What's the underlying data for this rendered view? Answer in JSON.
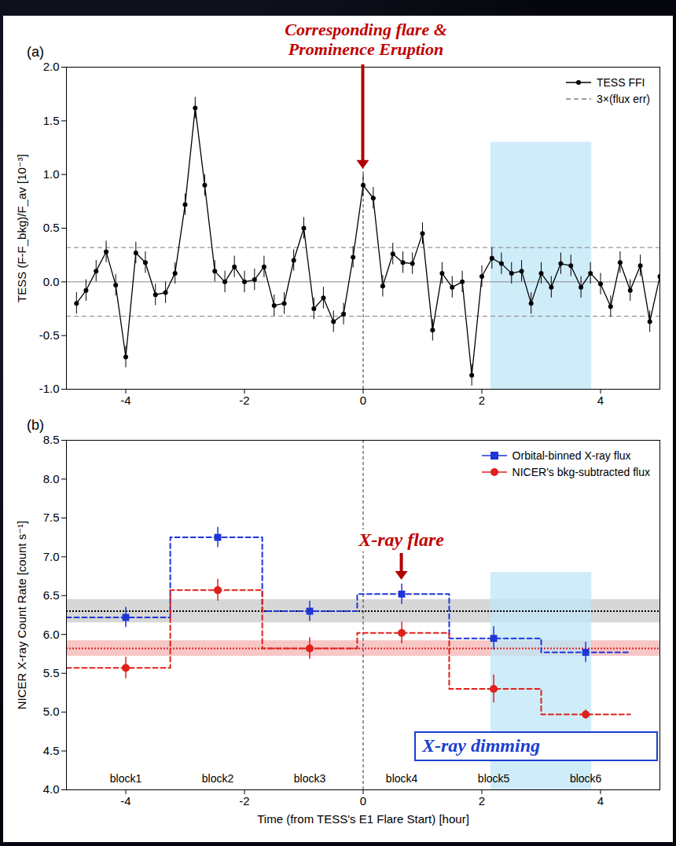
{
  "chart_data": [
    {
      "type": "line",
      "panel": "(a)",
      "y_label": "TESS (F-F_bkg)/F_av [10⁻³]",
      "xlim": [
        -5,
        5
      ],
      "xticks": [
        -4,
        -2,
        0,
        2,
        4
      ],
      "ylim": [
        -1.0,
        2.0
      ],
      "yticks": [
        {
          "value": -1.0,
          "label": "-1.0"
        },
        {
          "value": -0.5,
          "label": "-0.5"
        },
        {
          "value": 0,
          "label": "0.0"
        },
        {
          "value": 0.5,
          "label": "0.5"
        },
        {
          "value": 1.0,
          "label": "1.0"
        },
        {
          "value": 1.5,
          "label": "1.5"
        },
        {
          "value": 2.0,
          "label": "2.0"
        }
      ],
      "x": [
        -4.83,
        -4.67,
        -4.5,
        -4.33,
        -4.17,
        -4.0,
        -3.83,
        -3.67,
        -3.5,
        -3.33,
        -3.17,
        -3.0,
        -2.83,
        -2.67,
        -2.5,
        -2.33,
        -2.17,
        -2.0,
        -1.83,
        -1.67,
        -1.5,
        -1.33,
        -1.17,
        -1.0,
        -0.83,
        -0.67,
        -0.5,
        -0.33,
        -0.17,
        0.0,
        0.17,
        0.33,
        0.5,
        0.67,
        0.83,
        1.0,
        1.17,
        1.33,
        1.5,
        1.67,
        1.83,
        2.0,
        2.17,
        2.33,
        2.5,
        2.67,
        2.83,
        3.0,
        3.17,
        3.33,
        3.5,
        3.67,
        3.83,
        4.0,
        4.17,
        4.33,
        4.5,
        4.67,
        4.83,
        5.0
      ],
      "series": [
        {
          "name": "TESS FFI",
          "color": "#000000",
          "marker": "circle",
          "values": [
            -0.2,
            -0.08,
            0.1,
            0.28,
            -0.03,
            -0.7,
            0.27,
            0.18,
            -0.12,
            -0.1,
            0.08,
            0.72,
            1.62,
            0.9,
            0.1,
            0.0,
            0.14,
            0.0,
            0.02,
            0.14,
            -0.22,
            -0.2,
            0.2,
            0.5,
            -0.25,
            -0.15,
            -0.37,
            -0.3,
            0.23,
            0.9,
            0.78,
            -0.04,
            0.26,
            0.18,
            0.17,
            0.45,
            -0.45,
            0.08,
            -0.05,
            0.0,
            -0.87,
            0.05,
            0.22,
            0.17,
            0.08,
            0.1,
            -0.2,
            0.08,
            -0.05,
            0.17,
            0.15,
            -0.05,
            0.08,
            -0.02,
            -0.23,
            0.18,
            -0.08,
            0.15,
            -0.37,
            0.05
          ],
          "errors": [
            0.1,
            0.1,
            0.1,
            0.1,
            0.1,
            0.1,
            0.1,
            0.1,
            0.1,
            0.1,
            0.1,
            0.1,
            0.1,
            0.1,
            0.1,
            0.1,
            0.1,
            0.1,
            0.1,
            0.1,
            0.1,
            0.1,
            0.1,
            0.1,
            0.1,
            0.1,
            0.1,
            0.1,
            0.1,
            0.1,
            0.1,
            0.1,
            0.1,
            0.1,
            0.1,
            0.1,
            0.1,
            0.1,
            0.1,
            0.1,
            0.1,
            0.1,
            0.1,
            0.1,
            0.1,
            0.1,
            0.1,
            0.1,
            0.1,
            0.1,
            0.1,
            0.1,
            0.1,
            0.1,
            0.1,
            0.1,
            0.1,
            0.1,
            0.1,
            0.1
          ]
        }
      ],
      "threshold": {
        "name": "3×(flux err)",
        "values": [
          -0.32,
          0.32
        ],
        "color": "#808080",
        "line_style": "dashed"
      },
      "baseline": 0,
      "event_time": 0,
      "highlight": {
        "x": [
          2.15,
          3.85
        ],
        "y": [
          -1.0,
          1.3
        ],
        "color": "#bfe6f7"
      },
      "legend": "top-right",
      "annotations": [
        {
          "text": "Corresponding flare & Prominence Eruption",
          "x": 0,
          "y": 1.05,
          "color": "#c00000"
        }
      ]
    },
    {
      "type": "scatter",
      "panel": "(b)",
      "x_label": "Time (from TESS's E1 Flare Start) [hour]",
      "y_label": "NICER X-ray Count Rate [count s⁻¹]",
      "xlim": [
        -5,
        5
      ],
      "xticks": [
        -4,
        -2,
        0,
        2,
        4
      ],
      "ylim": [
        4.0,
        8.5
      ],
      "yticks": [
        {
          "value": 4.0,
          "label": "4.0"
        },
        4.5,
        {
          "value": 5.0,
          "label": "5.0"
        },
        5.5,
        {
          "value": 6.0,
          "label": "6.0"
        },
        6.5,
        {
          "value": 7.0,
          "label": "7.0"
        },
        7.5,
        {
          "value": 8.0,
          "label": "8.0"
        },
        8.5
      ],
      "x": [
        -4.0,
        -2.45,
        -0.9,
        0.65,
        2.2,
        3.75
      ],
      "bin_edges": [
        -5,
        -3.25,
        -1.7,
        -0.1,
        1.45,
        3.0,
        4.5
      ],
      "block_labels": [
        "block1",
        "block2",
        "block3",
        "block4",
        "block5",
        "block6"
      ],
      "series": [
        {
          "name": "Orbital-binned X-ray flux",
          "color": "#1f35d8",
          "marker": "square",
          "type": "step",
          "line_style": "dashed",
          "values": [
            6.22,
            7.25,
            6.3,
            6.52,
            5.95,
            5.77
          ],
          "errors": [
            0.13,
            0.13,
            0.13,
            0.13,
            0.15,
            0.13
          ],
          "mean": 6.3,
          "mean_error": 0.15
        },
        {
          "name": "NICER's bkg-subtracted flux",
          "color": "#e0201b",
          "marker": "circle",
          "type": "step",
          "line_style": "dashed",
          "values": [
            5.57,
            6.57,
            5.82,
            6.02,
            5.3,
            4.97
          ],
          "errors": [
            0.14,
            0.14,
            0.14,
            0.14,
            0.18,
            0.06
          ],
          "mean": 5.82,
          "mean_error": 0.1
        }
      ],
      "event_time": 0,
      "highlight": {
        "x": [
          2.15,
          3.85
        ],
        "y": [
          4.0,
          6.8
        ],
        "color": "#bfe6f7"
      },
      "legend": "top-right",
      "annotations": [
        {
          "text": "X-ray flare",
          "x": 0.65,
          "y": 6.7,
          "color": "#c00000"
        },
        {
          "text": "X-ray dimming",
          "color": "#1a3fd0"
        }
      ]
    }
  ]
}
